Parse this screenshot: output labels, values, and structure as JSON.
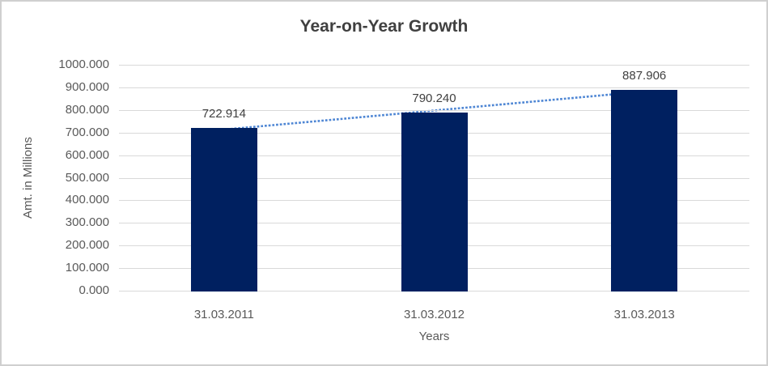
{
  "chart_data": {
    "type": "bar",
    "title": "Year-on-Year Growth",
    "xlabel": "Years",
    "ylabel": "Amt. in Millions",
    "categories": [
      "31.03.2011",
      "31.03.2012",
      "31.03.2013"
    ],
    "values": [
      722.914,
      790.24,
      887.906
    ],
    "value_labels": [
      "722.914",
      "790.240",
      "887.906"
    ],
    "ylim": [
      0,
      1000
    ],
    "ytick_step": 100,
    "ytick_labels_top_to_bottom": [
      "1000.000",
      "900.000",
      "800.000",
      "700.000",
      "600.000",
      "500.000",
      "400.000",
      "300.000",
      "200.000",
      "100.000",
      "0.000"
    ],
    "grid": "horizontal",
    "legend": "none",
    "trendline": {
      "type": "linear",
      "style": "dotted",
      "color": "#4e86d4"
    },
    "colors": {
      "bar_fill": "#002060",
      "gridline": "#d9d9d9",
      "title_text": "#404040",
      "axis_text": "#595959",
      "data_label_text": "#404040"
    }
  }
}
